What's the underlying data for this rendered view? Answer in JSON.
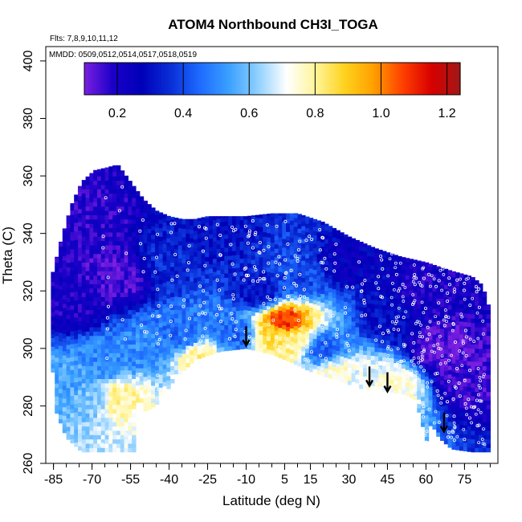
{
  "chart_data": {
    "type": "heatmap",
    "title": "ATOM4 Northbound CH3I_TOGA",
    "annotations": {
      "flights": "Flts: 7,8,9,10,11,12",
      "dates": "MMDD: 0509,0512,0514,0517,0518,0519"
    },
    "xlabel": "Latitude (deg N)",
    "ylabel": "Theta (C)",
    "xlim": [
      -88,
      88
    ],
    "ylim": [
      260,
      405
    ],
    "x_ticks": [
      -85,
      -70,
      -55,
      -40,
      -25,
      -10,
      5,
      15,
      30,
      45,
      60,
      75
    ],
    "x_tick_labels": [
      "-85",
      "-70",
      "-55",
      "-40",
      "-25",
      "-10",
      "5",
      "15",
      "30",
      "45",
      "60",
      "75"
    ],
    "y_ticks": [
      260,
      280,
      300,
      320,
      340,
      360,
      380,
      400
    ],
    "y_tick_labels": [
      "260",
      "280",
      "300",
      "320",
      "340",
      "360",
      "380",
      "400"
    ],
    "colorbar": {
      "min": 0.1,
      "max": 1.24,
      "ticks": [
        0.2,
        0.4,
        0.6,
        0.8,
        1.0,
        1.2
      ],
      "tick_labels": [
        "0.2",
        "0.4",
        "0.6",
        "0.8",
        "1.0",
        "1.2"
      ],
      "colors": [
        "#7b1fe0",
        "#1a00c8",
        "#0000b8",
        "#0a2fd8",
        "#1e6bff",
        "#3aa0ff",
        "#8fd0ff",
        "#ffffff",
        "#fff59a",
        "#ffd21e",
        "#ffa000",
        "#ff4000",
        "#d80000",
        "#a01818"
      ]
    },
    "field": {
      "lat_range": [
        -86,
        85
      ],
      "theta_range": [
        264,
        363
      ],
      "top_boundary": [
        [
          -86,
          324
        ],
        [
          -82,
          338
        ],
        [
          -78,
          350
        ],
        [
          -74,
          358
        ],
        [
          -69,
          362
        ],
        [
          -64,
          363
        ],
        [
          -60,
          364
        ],
        [
          -55,
          358
        ],
        [
          -50,
          352
        ],
        [
          -45,
          348
        ],
        [
          -40,
          346
        ],
        [
          -35,
          345
        ],
        [
          -30,
          345
        ],
        [
          -25,
          346
        ],
        [
          -20,
          346
        ],
        [
          -10,
          346
        ],
        [
          0,
          347
        ],
        [
          10,
          347
        ],
        [
          20,
          344
        ],
        [
          30,
          339
        ],
        [
          40,
          335
        ],
        [
          50,
          332
        ],
        [
          60,
          330
        ],
        [
          70,
          327
        ],
        [
          78,
          325
        ],
        [
          82,
          322
        ],
        [
          85,
          313
        ]
      ],
      "bottom_boundary": [
        [
          -86,
          300
        ],
        [
          -84,
          278
        ],
        [
          -80,
          269
        ],
        [
          -74,
          264
        ],
        [
          -53,
          264
        ],
        [
          -53,
          282
        ],
        [
          -49,
          278
        ],
        [
          -44,
          281
        ],
        [
          -38,
          289
        ],
        [
          -30,
          296
        ],
        [
          -20,
          299
        ],
        [
          -10,
          300
        ],
        [
          0,
          298
        ],
        [
          8,
          295
        ],
        [
          15,
          292
        ],
        [
          25,
          289
        ],
        [
          35,
          286
        ],
        [
          45,
          285
        ],
        [
          52,
          284
        ],
        [
          56,
          282
        ],
        [
          59,
          272
        ],
        [
          60,
          267
        ],
        [
          62,
          274
        ],
        [
          65,
          269
        ],
        [
          70,
          265
        ],
        [
          78,
          264
        ],
        [
          85,
          264
        ]
      ],
      "features": [
        {
          "lat": 5,
          "theta": 309,
          "value": 1.1
        },
        {
          "lat": 3,
          "theta": 305,
          "value": 0.85
        },
        {
          "lat": 8,
          "theta": 303,
          "value": 0.8
        },
        {
          "lat": -28,
          "theta": 297,
          "value": 0.8
        },
        {
          "lat": -60,
          "theta": 283,
          "value": 0.8
        },
        {
          "lat": 25,
          "theta": 291,
          "value": 0.75
        },
        {
          "lat": 48,
          "theta": 287,
          "value": 0.75
        },
        {
          "lat": 35,
          "theta": 288,
          "value": 0.7
        },
        {
          "lat": -70,
          "theta": 283,
          "value": 0.6
        },
        {
          "lat": -80,
          "theta": 288,
          "value": 0.55
        },
        {
          "lat": -50,
          "theta": 300,
          "value": 0.5
        },
        {
          "lat": -65,
          "theta": 295,
          "value": 0.5
        },
        {
          "lat": -35,
          "theta": 305,
          "value": 0.45
        },
        {
          "lat": -15,
          "theta": 305,
          "value": 0.45
        },
        {
          "lat": 20,
          "theta": 300,
          "value": 0.45
        },
        {
          "lat": 10,
          "theta": 325,
          "value": 0.4
        },
        {
          "lat": -40,
          "theta": 330,
          "value": 0.35
        },
        {
          "lat": 45,
          "theta": 310,
          "value": 0.3
        },
        {
          "lat": -20,
          "theta": 340,
          "value": 0.3
        },
        {
          "lat": -70,
          "theta": 345,
          "value": 0.18
        },
        {
          "lat": -60,
          "theta": 325,
          "value": 0.14
        },
        {
          "lat": -78,
          "theta": 315,
          "value": 0.2
        },
        {
          "lat": 65,
          "theta": 300,
          "value": 0.12
        },
        {
          "lat": 75,
          "theta": 290,
          "value": 0.15
        },
        {
          "lat": 60,
          "theta": 320,
          "value": 0.2
        },
        {
          "lat": 30,
          "theta": 330,
          "value": 0.25
        },
        {
          "lat": -5,
          "theta": 320,
          "value": 0.3
        }
      ],
      "base_value": 0.25
    },
    "arrows": [
      {
        "lat": -10,
        "theta": 304
      },
      {
        "lat": 38,
        "theta": 290
      },
      {
        "lat": 45,
        "theta": 288
      },
      {
        "lat": 67,
        "theta": 274
      }
    ],
    "points_description": "white circle markers along flight tracks"
  }
}
